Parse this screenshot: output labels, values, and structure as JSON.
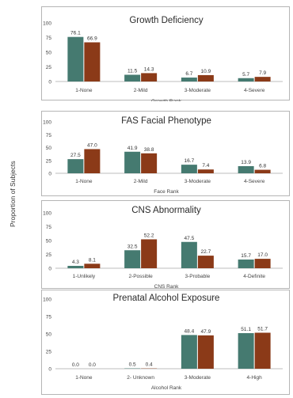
{
  "y_axis_label": "Proportion of Subjects",
  "colors": {
    "series_a": "#457a70",
    "series_b": "#8b3a18",
    "axis": "#bdbdbd",
    "text": "#404040"
  },
  "chart_data": [
    {
      "type": "bar",
      "title": "Growth Deficiency",
      "xlabel": "Growth Rank",
      "ylim": [
        0,
        100
      ],
      "yticks": [
        0,
        25,
        50,
        75,
        100
      ],
      "categories": [
        "1-None",
        "2-Mild",
        "3-Moderate",
        "4-Severe"
      ],
      "series": [
        {
          "values": [
            76.1,
            11.5,
            6.7,
            5.7
          ]
        },
        {
          "values": [
            66.9,
            14.3,
            10.9,
            7.9
          ]
        }
      ]
    },
    {
      "type": "bar",
      "title": "FAS Facial Phenotype",
      "xlabel": "Face Rank",
      "ylim": [
        0,
        100
      ],
      "yticks": [
        0,
        25,
        50,
        75,
        100
      ],
      "categories": [
        "1-None",
        "2-Mild",
        "3-Moderate",
        "4-Severe"
      ],
      "series": [
        {
          "values": [
            27.5,
            41.9,
            16.7,
            13.9
          ]
        },
        {
          "values": [
            47.0,
            38.8,
            7.4,
            6.8
          ]
        }
      ]
    },
    {
      "type": "bar",
      "title": "CNS Abnormality",
      "xlabel": "CNS Rank",
      "ylim": [
        0,
        100
      ],
      "yticks": [
        0,
        25,
        50,
        75,
        100
      ],
      "categories": [
        "1-Unlikely",
        "2-Possible",
        "3-Probable",
        "4-Definite"
      ],
      "series": [
        {
          "values": [
            4.3,
            32.5,
            47.5,
            15.7
          ]
        },
        {
          "values": [
            8.1,
            52.2,
            22.7,
            17.0
          ]
        }
      ]
    },
    {
      "type": "bar",
      "title": "Prenatal Alcohol Exposure",
      "xlabel": "Alcohol Rank",
      "ylim": [
        0,
        100
      ],
      "yticks": [
        0,
        25,
        50,
        75,
        100
      ],
      "categories": [
        "1-None",
        "2- Unknown",
        "3-Moderate",
        "4-High"
      ],
      "series": [
        {
          "values": [
            0.0,
            0.5,
            48.4,
            51.1
          ]
        },
        {
          "values": [
            0.0,
            0.4,
            47.9,
            51.7
          ]
        }
      ]
    }
  ]
}
